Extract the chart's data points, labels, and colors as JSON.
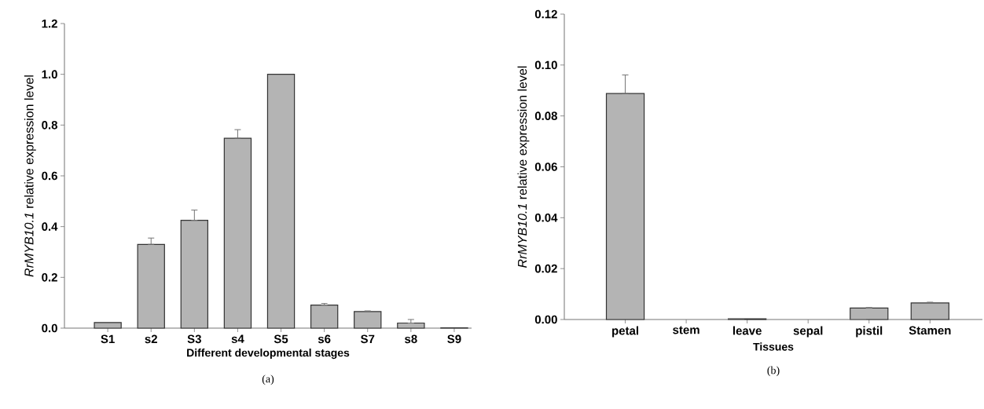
{
  "chart_data": [
    {
      "type": "bar",
      "title": "(a)",
      "xlabel": "Different developmental stages",
      "ylabel": "*RrMYB10.1* relative expression level",
      "categories": [
        "S1",
        "s2",
        "S3",
        "s4",
        "S5",
        "s6",
        "S7",
        "s8",
        "S9"
      ],
      "values": [
        0.022,
        0.33,
        0.425,
        0.748,
        1.0,
        0.091,
        0.065,
        0.02,
        0.001
      ],
      "errors": [
        null,
        [
          0.33,
          0.355
        ],
        [
          0.425,
          0.465
        ],
        [
          0.748,
          0.782
        ],
        null,
        [
          0.091,
          0.097
        ],
        [
          0.065,
          0.068
        ],
        [
          0.02,
          0.034
        ],
        null
      ],
      "color": "#b4b4b4",
      "ylim": [
        0,
        1.2
      ],
      "yticks": [
        {
          "value": 0,
          "label": "0.0"
        },
        {
          "value": 0.2,
          "label": "0.2"
        },
        {
          "value": 0.4,
          "label": "0.4"
        },
        {
          "value": 0.6,
          "label": "0.6"
        },
        {
          "value": 0.8,
          "label": "0.8"
        },
        {
          "value": 1.0,
          "label": "1.0"
        },
        {
          "value": 1.2,
          "label": "1.2"
        }
      ]
    },
    {
      "type": "bar",
      "title": "(b)",
      "xlabel": "Tissues",
      "ylabel": "*RrMYB10.1* relative expression level",
      "categories": [
        "petal",
        "stem",
        "leave",
        "sepal",
        "pistil",
        "Stamen"
      ],
      "values": [
        0.0888,
        0,
        0.0003,
        0,
        0.0045,
        0.0065
      ],
      "errors": [
        [
          0.0888,
          0.0961
        ],
        null,
        null,
        null,
        [
          0.0045,
          0.0047
        ],
        [
          0.0065,
          0.0068
        ]
      ],
      "color": "#b4b4b4",
      "ylim": [
        0,
        0.12
      ],
      "yticks": [
        {
          "value": 0,
          "label": "0.00"
        },
        {
          "value": 0.02,
          "label": "0.02"
        },
        {
          "value": 0.04,
          "label": "0.04"
        },
        {
          "value": 0.06,
          "label": "0.06"
        },
        {
          "value": 0.08,
          "label": "0.08"
        },
        {
          "value": 0.1,
          "label": "0.10"
        },
        {
          "value": 0.12,
          "label": "0.12"
        }
      ]
    }
  ]
}
